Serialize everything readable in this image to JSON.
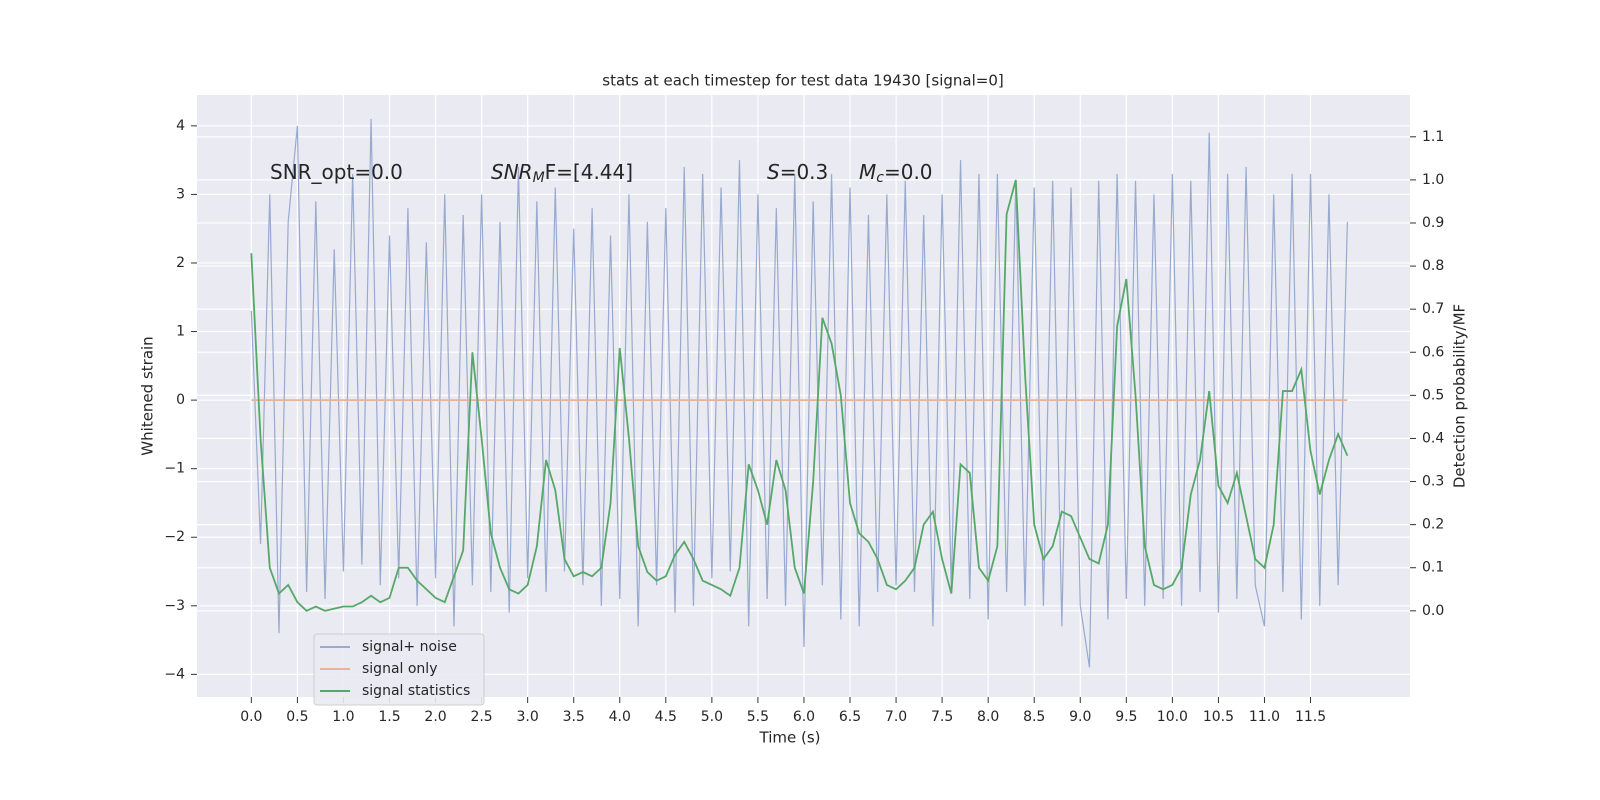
{
  "chart_data": {
    "type": "line",
    "title": "stats at each timestep for test data 19430 [signal=0]",
    "x_label": "Time (s)",
    "y_label": "Whitened strain",
    "y2_label": "Detection probability/MF",
    "annotations": [
      {
        "text": "SNR_opt=0.0"
      },
      {
        "base": "SNR",
        "sub": "M",
        "rest": "F=[4.44]"
      },
      {
        "base": "S",
        "rest": "=0.3"
      },
      {
        "base": "M",
        "sub": "c",
        "rest": "=0.0"
      }
    ],
    "x": [
      0.0,
      0.1,
      0.2,
      0.3,
      0.4,
      0.5,
      0.6,
      0.7,
      0.8,
      0.9,
      1.0,
      1.1,
      1.2,
      1.3,
      1.4,
      1.5,
      1.6,
      1.7,
      1.8,
      1.9,
      2.0,
      2.1,
      2.2,
      2.3,
      2.4,
      2.5,
      2.6,
      2.7,
      2.8,
      2.9,
      3.0,
      3.1,
      3.2,
      3.3,
      3.4,
      3.5,
      3.6,
      3.7,
      3.8,
      3.9,
      4.0,
      4.1,
      4.2,
      4.3,
      4.4,
      4.5,
      4.6,
      4.7,
      4.8,
      4.9,
      5.0,
      5.1,
      5.2,
      5.3,
      5.4,
      5.5,
      5.6,
      5.7,
      5.8,
      5.9,
      6.0,
      6.1,
      6.2,
      6.3,
      6.4,
      6.5,
      6.6,
      6.7,
      6.8,
      6.9,
      7.0,
      7.1,
      7.2,
      7.3,
      7.4,
      7.5,
      7.6,
      7.7,
      7.8,
      7.9,
      8.0,
      8.1,
      8.2,
      8.3,
      8.4,
      8.5,
      8.6,
      8.7,
      8.8,
      8.9,
      9.0,
      9.1,
      9.2,
      9.3,
      9.4,
      9.5,
      9.6,
      9.7,
      9.8,
      9.9,
      10.0,
      10.1,
      10.2,
      10.3,
      10.4,
      10.5,
      10.6,
      10.7,
      10.8,
      10.9,
      11.0,
      11.1,
      11.2,
      11.3,
      11.4,
      11.5,
      11.6,
      11.7,
      11.8,
      11.9
    ],
    "series": [
      {
        "name": "signal+ noise",
        "color": "#98aacf",
        "axis": "y",
        "values": [
          1.3,
          -2.1,
          3.0,
          -3.4,
          2.6,
          4.0,
          -2.8,
          2.9,
          -2.9,
          2.2,
          -2.5,
          3.3,
          -2.4,
          4.1,
          -2.7,
          2.4,
          -2.6,
          2.8,
          -3.0,
          2.3,
          -2.6,
          3.0,
          -3.3,
          2.7,
          -2.7,
          3.0,
          -2.8,
          2.6,
          -3.1,
          3.4,
          -2.6,
          2.9,
          -2.8,
          3.1,
          -2.5,
          2.5,
          -2.7,
          2.8,
          -3.0,
          2.4,
          -2.9,
          3.0,
          -3.3,
          2.6,
          -2.7,
          2.8,
          -3.1,
          3.4,
          -3.0,
          3.3,
          -2.6,
          3.1,
          -2.5,
          3.5,
          -3.3,
          3.0,
          -2.9,
          2.8,
          -3.0,
          3.3,
          -3.6,
          2.9,
          -2.7,
          3.3,
          -3.2,
          3.1,
          -3.3,
          2.7,
          -2.8,
          3.0,
          -2.7,
          3.2,
          -2.8,
          2.7,
          -3.3,
          3.0,
          -2.8,
          3.5,
          -2.9,
          3.3,
          -3.2,
          3.3,
          -2.8,
          3.2,
          -3.0,
          3.1,
          -3.0,
          3.2,
          -3.3,
          3.1,
          -3.0,
          -3.9,
          3.2,
          -3.2,
          3.3,
          -2.9,
          3.2,
          -3.0,
          3.0,
          -2.9,
          3.3,
          -3.0,
          3.2,
          -2.8,
          3.9,
          -3.1,
          3.3,
          -2.9,
          3.4,
          -2.7,
          -3.3,
          3.0,
          -2.8,
          3.3,
          -3.2,
          3.3,
          -3.0,
          3.0,
          -2.7,
          2.6
        ]
      },
      {
        "name": "signal only",
        "color": "#e7b39a",
        "axis": "y",
        "values": [
          0,
          0,
          0,
          0,
          0,
          0,
          0,
          0,
          0,
          0,
          0,
          0,
          0,
          0,
          0,
          0,
          0,
          0,
          0,
          0,
          0,
          0,
          0,
          0,
          0,
          0,
          0,
          0,
          0,
          0,
          0,
          0,
          0,
          0,
          0,
          0,
          0,
          0,
          0,
          0,
          0,
          0,
          0,
          0,
          0,
          0,
          0,
          0,
          0,
          0,
          0,
          0,
          0,
          0,
          0,
          0,
          0,
          0,
          0,
          0,
          0,
          0,
          0,
          0,
          0,
          0,
          0,
          0,
          0,
          0,
          0,
          0,
          0,
          0,
          0,
          0,
          0,
          0,
          0,
          0,
          0,
          0,
          0,
          0,
          0,
          0,
          0,
          0,
          0,
          0,
          0,
          0,
          0,
          0,
          0,
          0,
          0,
          0,
          0,
          0,
          0,
          0,
          0,
          0,
          0,
          0,
          0,
          0,
          0,
          0,
          0,
          0,
          0,
          0,
          0,
          0,
          0,
          0,
          0,
          0
        ]
      },
      {
        "name": "signal statistics",
        "color": "#55a868",
        "axis": "y2",
        "values": [
          0.83,
          0.4,
          0.1,
          0.04,
          0.06,
          0.02,
          0.0,
          0.01,
          0.0,
          0.005,
          0.01,
          0.01,
          0.02,
          0.035,
          0.02,
          0.03,
          0.1,
          0.1,
          0.07,
          0.05,
          0.03,
          0.02,
          0.08,
          0.14,
          0.6,
          0.4,
          0.18,
          0.1,
          0.05,
          0.04,
          0.06,
          0.15,
          0.35,
          0.28,
          0.12,
          0.08,
          0.09,
          0.08,
          0.1,
          0.25,
          0.61,
          0.4,
          0.15,
          0.09,
          0.07,
          0.08,
          0.13,
          0.16,
          0.12,
          0.07,
          0.06,
          0.05,
          0.035,
          0.1,
          0.34,
          0.28,
          0.2,
          0.35,
          0.28,
          0.1,
          0.04,
          0.3,
          0.68,
          0.62,
          0.5,
          0.25,
          0.18,
          0.16,
          0.12,
          0.06,
          0.05,
          0.07,
          0.1,
          0.2,
          0.23,
          0.12,
          0.04,
          0.34,
          0.32,
          0.1,
          0.07,
          0.15,
          0.92,
          1.0,
          0.55,
          0.2,
          0.12,
          0.15,
          0.23,
          0.22,
          0.17,
          0.12,
          0.11,
          0.2,
          0.66,
          0.77,
          0.5,
          0.15,
          0.06,
          0.05,
          0.06,
          0.1,
          0.27,
          0.35,
          0.51,
          0.29,
          0.25,
          0.32,
          0.22,
          0.12,
          0.1,
          0.2,
          0.51,
          0.51,
          0.56,
          0.37,
          0.27,
          0.35,
          0.41,
          0.36
        ]
      }
    ],
    "xlim": [
      -0.59,
      12.58
    ],
    "ylim": [
      -4.33,
      4.45
    ],
    "y2lim": [
      -0.2,
      1.197
    ],
    "xticks": [
      {
        "value": 0,
        "label": "0.0"
      },
      0.5,
      {
        "value": 1,
        "label": "1.0"
      },
      1.5,
      {
        "value": 2,
        "label": "2.0"
      },
      2.5,
      {
        "value": 3,
        "label": "3.0"
      },
      3.5,
      {
        "value": 4,
        "label": "4.0"
      },
      4.5,
      {
        "value": 5,
        "label": "5.0"
      },
      5.5,
      {
        "value": 6,
        "label": "6.0"
      },
      6.5,
      {
        "value": 7,
        "label": "7.0"
      },
      7.5,
      {
        "value": 8,
        "label": "8.0"
      },
      8.5,
      {
        "value": 9,
        "label": "9.0"
      },
      9.5,
      {
        "value": 10,
        "label": "10.0"
      },
      10.5,
      {
        "value": 11,
        "label": "11.0"
      },
      11.5
    ],
    "yticks": [
      {
        "value": -4,
        "label": "−4"
      },
      {
        "value": -3,
        "label": "−3"
      },
      {
        "value": -2,
        "label": "−2"
      },
      {
        "value": -1,
        "label": "−1"
      },
      0,
      1,
      2,
      3,
      4
    ],
    "y2ticks": [
      {
        "value": 0,
        "label": "0.0"
      },
      0.1,
      0.2,
      0.3,
      0.4,
      0.5,
      0.6,
      0.7,
      0.8,
      0.9,
      {
        "value": 1,
        "label": "1.0"
      },
      1.1
    ],
    "grid": true,
    "legend": "lower left",
    "background": "#eaeaf2"
  }
}
